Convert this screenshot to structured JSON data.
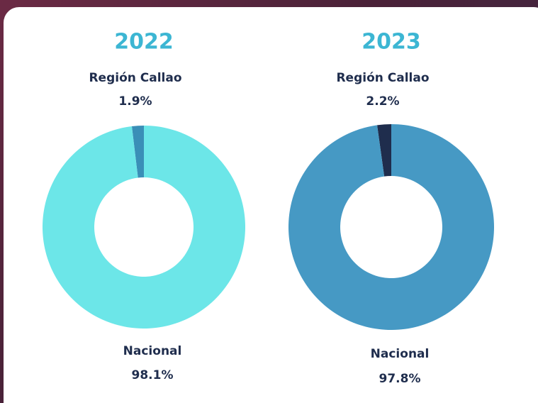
{
  "chart_data": [
    {
      "type": "pie",
      "title": "2022",
      "donut": true,
      "categories": [
        "Región Callao",
        "Nacional"
      ],
      "values": [
        1.9,
        98.1
      ],
      "value_labels": [
        "1.9%",
        "98.1%"
      ],
      "colors": [
        "#3a8fb7",
        "#6ce6e8"
      ]
    },
    {
      "type": "pie",
      "title": "2023",
      "donut": true,
      "categories": [
        "Región Callao",
        "Nacional"
      ],
      "values": [
        2.2,
        97.8
      ],
      "value_labels": [
        "2.2%",
        "97.8%"
      ],
      "colors": [
        "#1f2d4d",
        "#4699c4"
      ]
    }
  ]
}
